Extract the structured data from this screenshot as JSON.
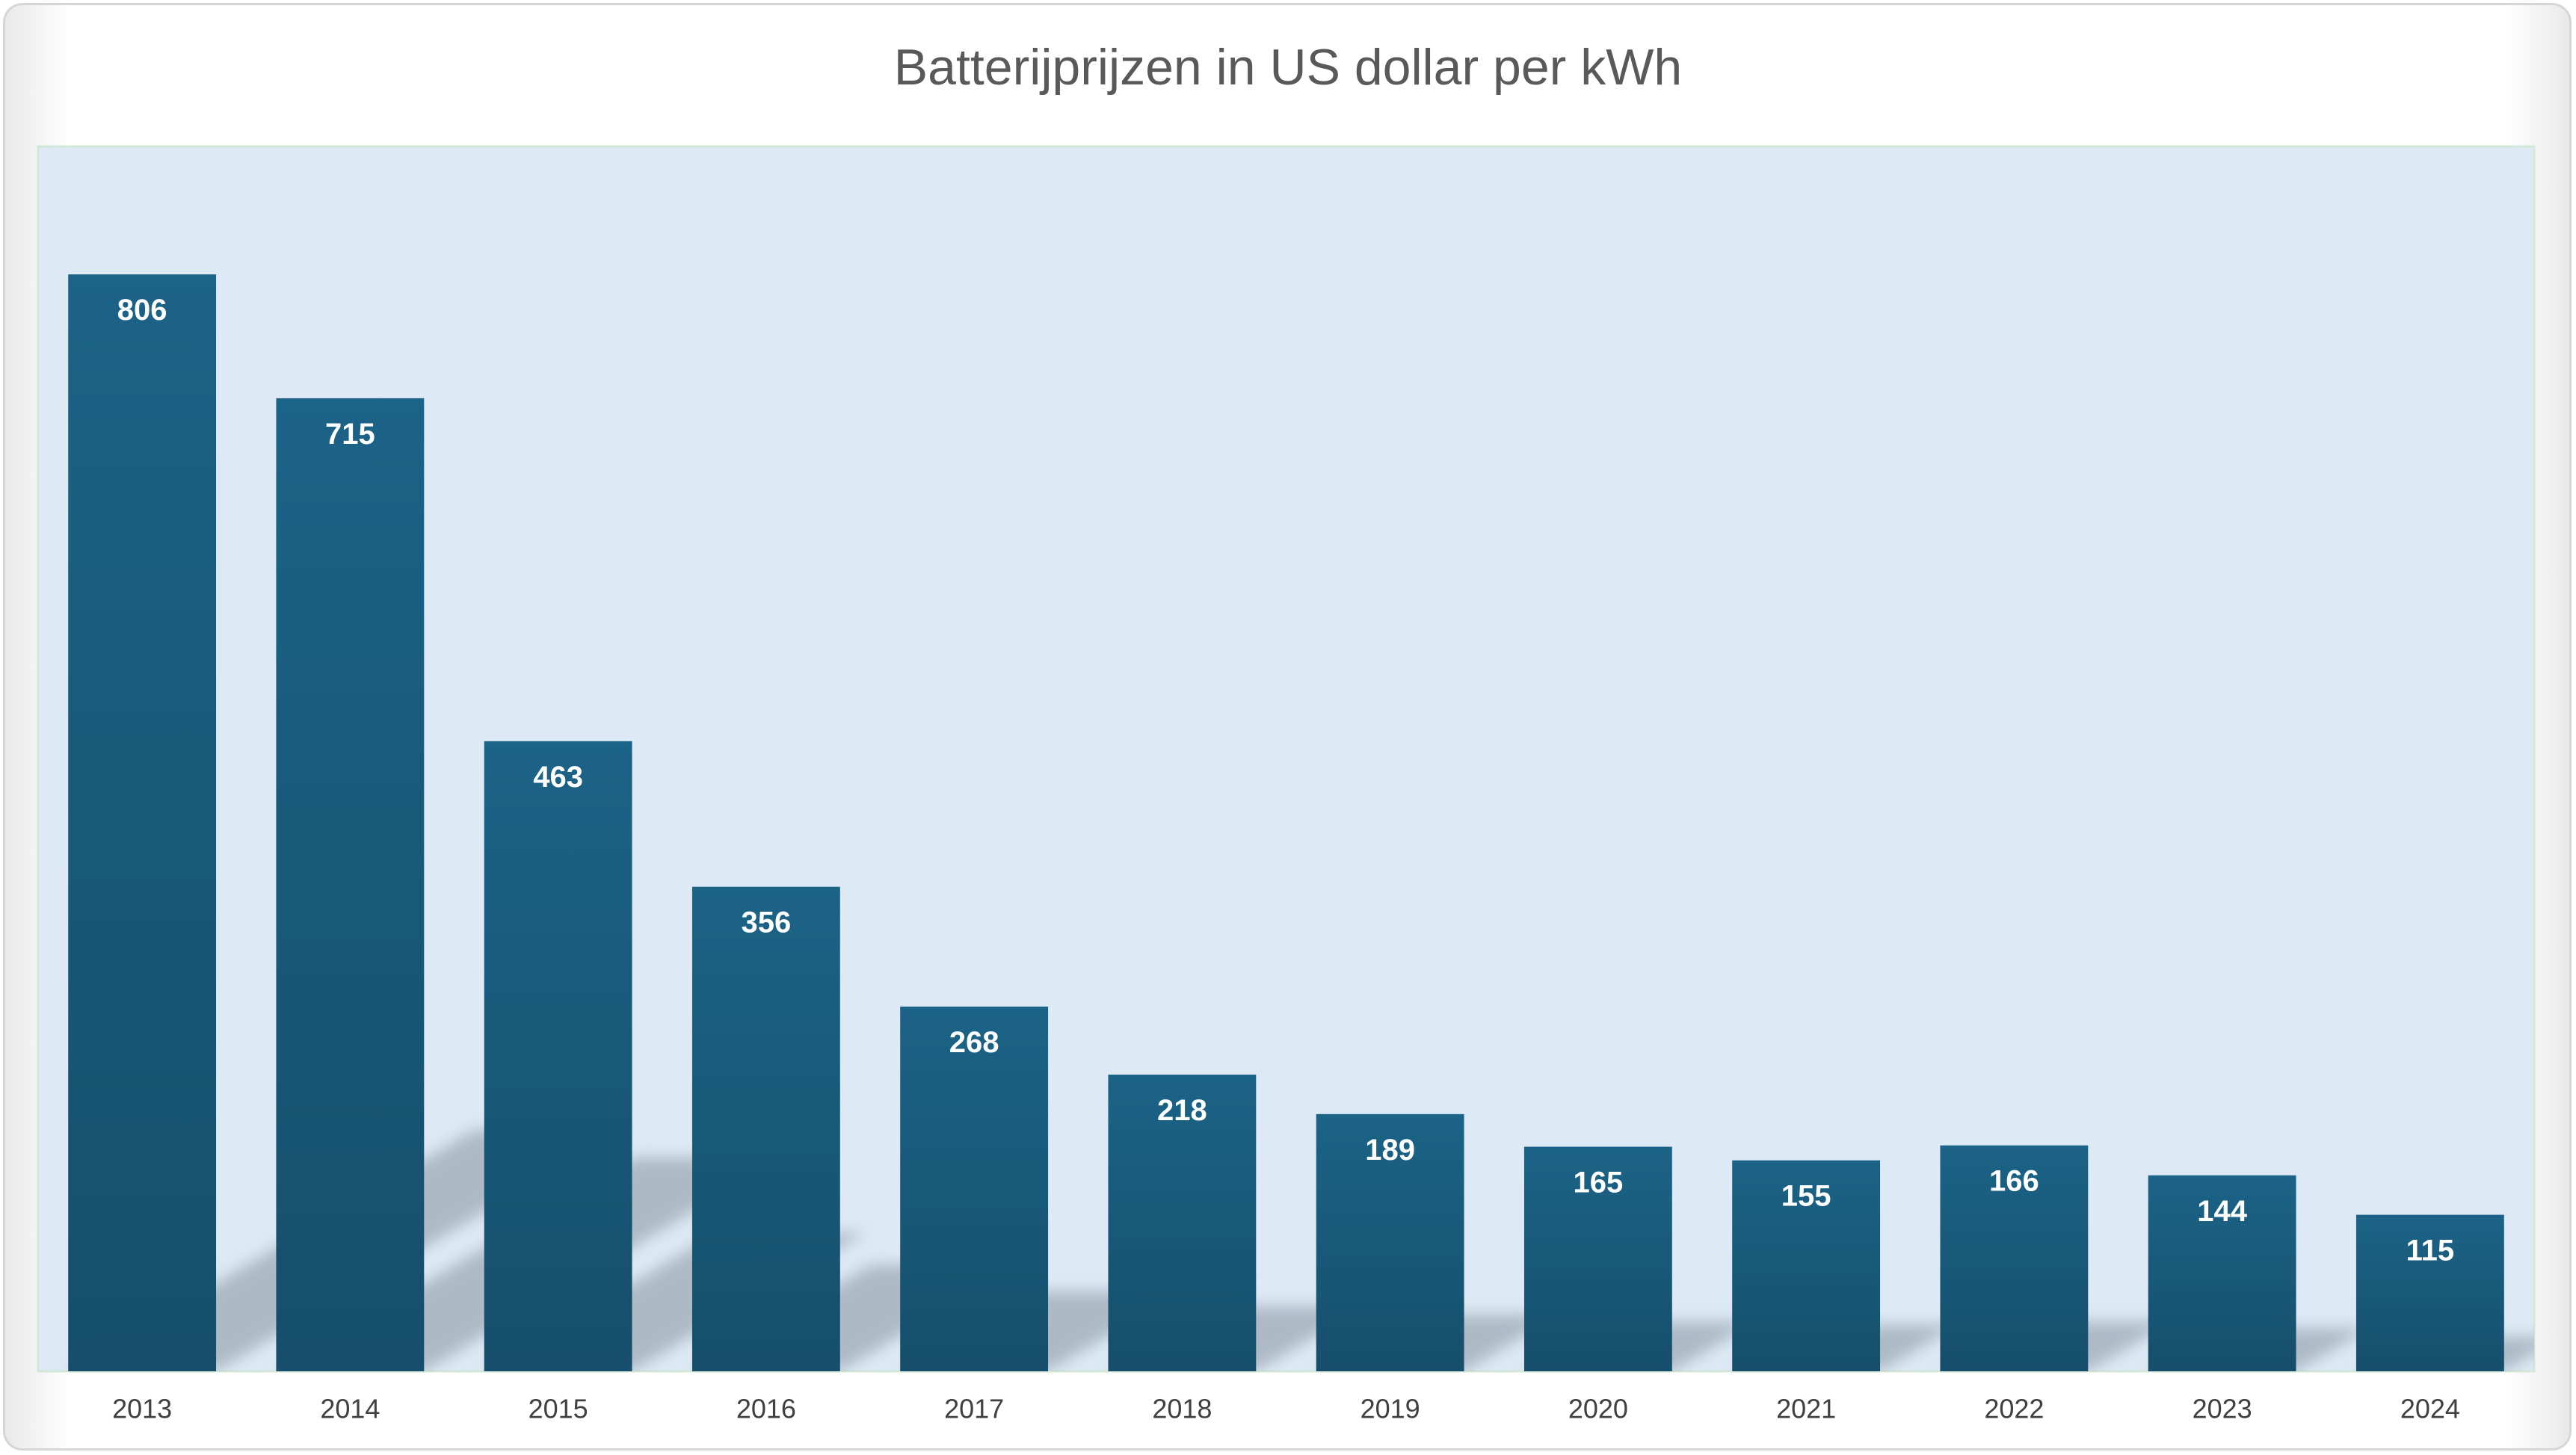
{
  "chart_data": {
    "type": "bar",
    "title": "Batterijprijzen in US dollar per kWh",
    "categories": [
      "2013",
      "2014",
      "2015",
      "2016",
      "2017",
      "2018",
      "2019",
      "2020",
      "2021",
      "2022",
      "2023",
      "2024"
    ],
    "values": [
      806,
      715,
      463,
      356,
      268,
      218,
      189,
      165,
      155,
      166,
      144,
      115
    ],
    "xlabel": "",
    "ylabel": "",
    "ylim": [
      0,
      900
    ],
    "data_labels": "inside-end",
    "grid": false,
    "legend": "none"
  },
  "colors": {
    "bar_top": "#1b6387",
    "bar_bottom": "#164e6b",
    "plot_background": "#dde9f5",
    "plot_border": "#d3e7d7",
    "title": "#595959",
    "tick_label": "#404040",
    "data_label": "#ffffff",
    "shadow": "#8593a0"
  }
}
